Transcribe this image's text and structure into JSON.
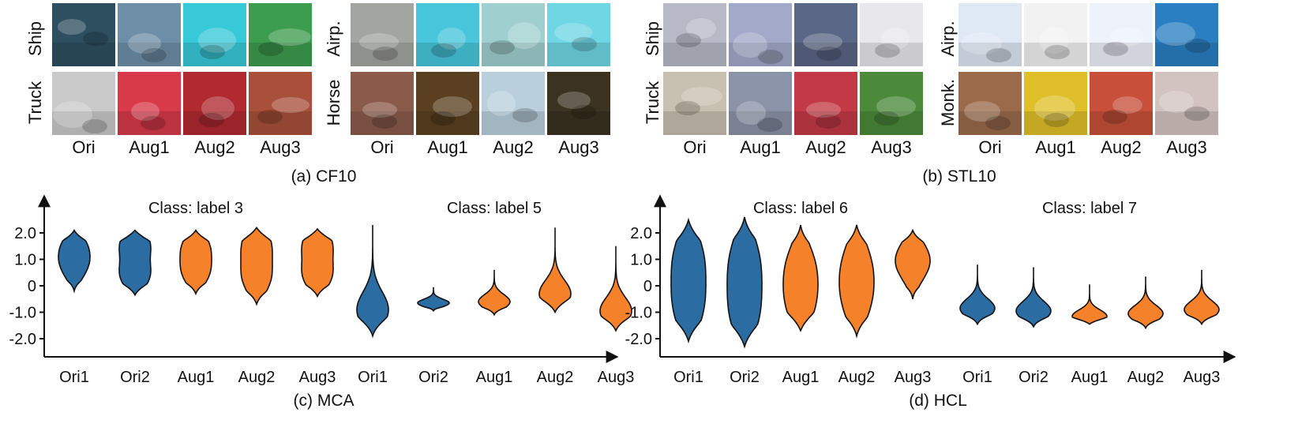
{
  "panels": {
    "a": {
      "caption": "(a) CF10",
      "groups": [
        {
          "rows": [
            "Ship",
            "Truck"
          ],
          "cols": [
            "Ori",
            "Aug1",
            "Aug2",
            "Aug3"
          ]
        },
        {
          "rows": [
            "Airp.",
            "Horse"
          ],
          "cols": [
            "Ori",
            "Aug1",
            "Aug2",
            "Aug3"
          ]
        }
      ]
    },
    "b": {
      "caption": "(b) STL10",
      "groups": [
        {
          "rows": [
            "Ship",
            "Truck"
          ],
          "cols": [
            "Ori",
            "Aug1",
            "Aug2",
            "Aug3"
          ]
        },
        {
          "rows": [
            "Airp.",
            "Monk."
          ],
          "cols": [
            "Ori",
            "Aug1",
            "Aug2",
            "Aug3"
          ]
        }
      ]
    },
    "c": {
      "caption": "(c) MCA"
    },
    "d": {
      "caption": "(d) HCL"
    }
  },
  "thumb_colors": {
    "a": [
      [
        "#2e4f60",
        "#6f8fa8",
        "#38c9d8",
        "#3d9d4e"
      ],
      [
        "#c9c9c9",
        "#d83a4a",
        "#b02a30",
        "#a8503a"
      ],
      [
        "#a3a6a0",
        "#47c6dc",
        "#9fd0cf",
        "#6fd6e4"
      ],
      [
        "#8a5a4a",
        "#5a4020",
        "#b9d0dc",
        "#3b3320"
      ]
    ],
    "b": [
      [
        "#b7b9c7",
        "#a3a9c9",
        "#5a6686",
        "#e8e8ec"
      ],
      [
        "#c8c0b0",
        "#8a93a8",
        "#c33a46",
        "#4a8a3a"
      ],
      [
        "#dfe8f5",
        "#f2f2f2",
        "#eef2fb",
        "#2a7fc2"
      ],
      [
        "#9a6a4a",
        "#e0c02a",
        "#c8503a",
        "#d2c3c0"
      ]
    ]
  },
  "chart_data": [
    {
      "type": "violin",
      "panel": "MCA",
      "ylim": [
        -2.8,
        3.2
      ],
      "yticks": [
        2.0,
        1.0,
        0,
        -1.0,
        -2.0
      ],
      "ytick_labels": [
        "2.0",
        "1.0",
        "0",
        "-1.0",
        "-2.0"
      ],
      "groups": [
        {
          "title": "Class: label 3",
          "categories": [
            "Ori1",
            "Ori2",
            "Aug1",
            "Aug2",
            "Aug3"
          ],
          "colors": [
            "#2b6ca3",
            "#2b6ca3",
            "#f5822a",
            "#f5822a",
            "#f5822a"
          ],
          "ranges": [
            [
              -0.2,
              2.1
            ],
            [
              -0.35,
              2.1
            ],
            [
              -0.3,
              2.1
            ],
            [
              -0.7,
              2.2
            ],
            [
              -0.4,
              2.15
            ]
          ],
          "modes": [
            [
              1.5,
              0.7
            ],
            [
              1.6,
              0.4
            ],
            [
              1.5,
              0.5
            ],
            [
              1.6,
              0.3
            ],
            [
              1.6,
              0.4
            ]
          ]
        },
        {
          "title": "Class: label 5",
          "categories": [
            "Ori1",
            "Ori2",
            "Aug1",
            "Aug2",
            "Aug3"
          ],
          "colors": [
            "#2b6ca3",
            "#2b6ca3",
            "#f5822a",
            "#f5822a",
            "#f5822a"
          ],
          "ranges": [
            [
              -1.9,
              2.3
            ],
            [
              -0.95,
              -0.05
            ],
            [
              -1.1,
              0.6
            ],
            [
              -1.0,
              2.2
            ],
            [
              -1.7,
              1.5
            ]
          ],
          "modes": [
            [
              -0.9
            ],
            [
              -0.65
            ],
            [
              -0.6
            ],
            [
              -0.3
            ],
            [
              -0.95
            ]
          ]
        }
      ]
    },
    {
      "type": "violin",
      "panel": "HCL",
      "ylim": [
        -2.8,
        3.2
      ],
      "yticks": [
        2.0,
        1.0,
        0,
        -1.0,
        -2.0
      ],
      "ytick_labels": [
        "2.0",
        "1.0",
        "0",
        "-1.0",
        "-2.0"
      ],
      "groups": [
        {
          "title": "Class: label 6",
          "categories": [
            "Ori1",
            "Ori2",
            "Aug1",
            "Aug2",
            "Aug3"
          ],
          "colors": [
            "#2b6ca3",
            "#2b6ca3",
            "#f5822a",
            "#f5822a",
            "#f5822a"
          ],
          "ranges": [
            [
              -2.1,
              2.5
            ],
            [
              -2.3,
              2.6
            ],
            [
              -1.7,
              2.3
            ],
            [
              -1.9,
              2.3
            ],
            [
              -0.5,
              2.1
            ]
          ],
          "modes": [
            [
              1.1,
              -0.8
            ],
            [
              1.0,
              -1.0
            ],
            [
              0.8,
              -0.7
            ],
            [
              0.9,
              -0.6
            ],
            [
              1.3,
              0.6
            ]
          ]
        },
        {
          "title": "Class: label 7",
          "categories": [
            "Ori1",
            "Ori2",
            "Aug1",
            "Aug2",
            "Aug3"
          ],
          "colors": [
            "#2b6ca3",
            "#2b6ca3",
            "#f5822a",
            "#f5822a",
            "#f5822a"
          ],
          "ranges": [
            [
              -1.45,
              0.8
            ],
            [
              -1.55,
              0.7
            ],
            [
              -1.45,
              0.05
            ],
            [
              -1.6,
              0.35
            ],
            [
              -1.45,
              0.6
            ]
          ],
          "modes": [
            [
              -0.85
            ],
            [
              -0.95
            ],
            [
              -1.15
            ],
            [
              -1.05
            ],
            [
              -0.9
            ]
          ]
        }
      ]
    }
  ]
}
